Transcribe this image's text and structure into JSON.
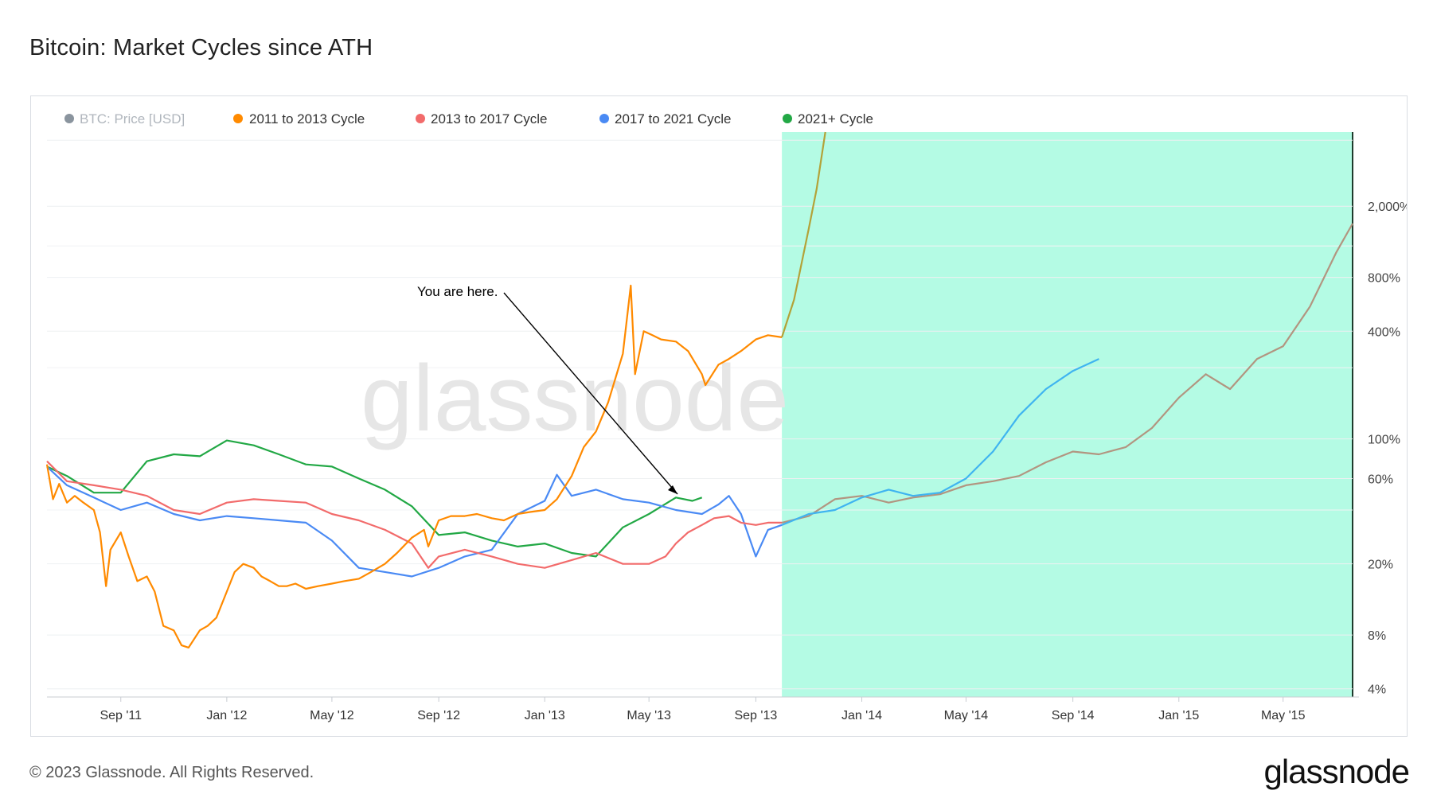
{
  "header": {
    "title": "Bitcoin: Market Cycles since ATH"
  },
  "footer": {
    "copyright": "© 2023 Glassnode. All Rights Reserved.",
    "logo": "glassnode"
  },
  "watermark": "glassnode",
  "annotation": {
    "text": "You are here."
  },
  "colors": {
    "btc_price": "#8a949e",
    "cycle_2011": "#ff8a00",
    "cycle_2013": "#f26b6b",
    "cycle_2017": "#4a8af4",
    "cycle_2021": "#22a845",
    "highlight": "#b4fbe4",
    "overlay_2011": "#b3a238",
    "overlay_2013": "#b29580",
    "overlay_2017": "#3fb4f0"
  },
  "chart_data": {
    "type": "line",
    "title": "Bitcoin: Market Cycles since ATH",
    "y_scale": "log",
    "y_unit": "%",
    "y_ticks": [
      "4%",
      "8%",
      "20%",
      "60%",
      "100%",
      "400%",
      "800%",
      "2,000%"
    ],
    "y_tick_values": [
      4,
      8,
      20,
      60,
      100,
      400,
      800,
      2000
    ],
    "x_ticks": [
      "Sep '11",
      "Jan '12",
      "May '12",
      "Sep '12",
      "Jan '13",
      "May '13",
      "Sep '13",
      "Jan '14",
      "May '14",
      "Sep '14",
      "Jan '15",
      "May '15"
    ],
    "x_range": [
      "2011-06-08",
      "2015-07-20"
    ],
    "highlight_range": [
      "2013-10-01",
      "2015-07-20"
    ],
    "legend_position": "top-left",
    "series": [
      {
        "name": "BTC: Price [USD]",
        "color_key": "btc_price",
        "disabled": true,
        "points": []
      },
      {
        "name": "2011 to 2013 Cycle",
        "color_key": "cycle_2011",
        "points": [
          [
            "2011-06-08",
            72
          ],
          [
            "2011-06-15",
            46
          ],
          [
            "2011-06-22",
            56
          ],
          [
            "2011-07-01",
            44
          ],
          [
            "2011-07-10",
            48
          ],
          [
            "2011-07-20",
            44
          ],
          [
            "2011-08-01",
            40
          ],
          [
            "2011-08-08",
            30
          ],
          [
            "2011-08-15",
            15
          ],
          [
            "2011-08-20",
            24
          ],
          [
            "2011-09-01",
            30
          ],
          [
            "2011-09-10",
            22
          ],
          [
            "2011-09-20",
            16
          ],
          [
            "2011-10-01",
            17
          ],
          [
            "2011-10-10",
            14
          ],
          [
            "2011-10-20",
            9
          ],
          [
            "2011-11-01",
            8.5
          ],
          [
            "2011-11-10",
            7
          ],
          [
            "2011-11-18",
            6.8
          ],
          [
            "2011-12-01",
            8.5
          ],
          [
            "2011-12-10",
            9
          ],
          [
            "2011-12-20",
            10
          ],
          [
            "2012-01-01",
            14
          ],
          [
            "2012-01-10",
            18
          ],
          [
            "2012-01-20",
            20
          ],
          [
            "2012-02-01",
            19
          ],
          [
            "2012-02-10",
            17
          ],
          [
            "2012-02-20",
            16
          ],
          [
            "2012-03-01",
            15
          ],
          [
            "2012-03-10",
            15
          ],
          [
            "2012-03-20",
            15.5
          ],
          [
            "2012-04-01",
            14.5
          ],
          [
            "2012-04-15",
            15
          ],
          [
            "2012-05-01",
            15.5
          ],
          [
            "2012-05-15",
            16
          ],
          [
            "2012-06-01",
            16.5
          ],
          [
            "2012-06-15",
            18
          ],
          [
            "2012-07-01",
            20
          ],
          [
            "2012-07-15",
            23
          ],
          [
            "2012-08-01",
            28
          ],
          [
            "2012-08-15",
            31
          ],
          [
            "2012-08-20",
            25
          ],
          [
            "2012-09-01",
            35
          ],
          [
            "2012-09-15",
            37
          ],
          [
            "2012-10-01",
            37
          ],
          [
            "2012-10-15",
            38
          ],
          [
            "2012-11-01",
            36
          ],
          [
            "2012-11-15",
            35
          ],
          [
            "2012-12-01",
            38
          ],
          [
            "2012-12-15",
            39
          ],
          [
            "2013-01-01",
            40
          ],
          [
            "2013-01-15",
            46
          ],
          [
            "2013-02-01",
            62
          ],
          [
            "2013-02-15,",
            90
          ],
          [
            "2013-03-01",
            110
          ],
          [
            "2013-03-15",
            160
          ],
          [
            "2013-04-01",
            300
          ],
          [
            "2013-04-10",
            720
          ],
          [
            "2013-04-15",
            230
          ],
          [
            "2013-04-25",
            400
          ],
          [
            "2013-05-05",
            380
          ],
          [
            "2013-05-15",
            360
          ],
          [
            "2013-06-01",
            350
          ],
          [
            "2013-06-15",
            310
          ],
          [
            "2013-07-01",
            230
          ],
          [
            "2013-07-05",
            200
          ],
          [
            "2013-07-20",
            260
          ],
          [
            "2013-08-01",
            280
          ],
          [
            "2013-08-15",
            310
          ],
          [
            "2013-09-01",
            360
          ],
          [
            "2013-09-15",
            380
          ],
          [
            "2013-10-01",
            370
          ]
        ]
      },
      {
        "name": "2013 to 2017 Cycle",
        "color_key": "cycle_2013",
        "points": [
          [
            "2011-06-08",
            75
          ],
          [
            "2011-07-01",
            58
          ],
          [
            "2011-08-01",
            55
          ],
          [
            "2011-09-01",
            52
          ],
          [
            "2011-10-01",
            48
          ],
          [
            "2011-11-01",
            40
          ],
          [
            "2011-12-01",
            38
          ],
          [
            "2012-01-01",
            44
          ],
          [
            "2012-02-01",
            46
          ],
          [
            "2012-03-01",
            45
          ],
          [
            "2012-04-01",
            44
          ],
          [
            "2012-05-01",
            38
          ],
          [
            "2012-06-01",
            35
          ],
          [
            "2012-07-01",
            31
          ],
          [
            "2012-08-01",
            26
          ],
          [
            "2012-08-20",
            19
          ],
          [
            "2012-09-01",
            22
          ],
          [
            "2012-10-01",
            24
          ],
          [
            "2012-11-01",
            22
          ],
          [
            "2012-12-01",
            20
          ],
          [
            "2013-01-01",
            19
          ],
          [
            "2013-02-01",
            21
          ],
          [
            "2013-03-01",
            23
          ],
          [
            "2013-04-01",
            20
          ],
          [
            "2013-05-01",
            20
          ],
          [
            "2013-05-20",
            22
          ],
          [
            "2013-06-01",
            26
          ],
          [
            "2013-06-15",
            30
          ],
          [
            "2013-07-01",
            33
          ],
          [
            "2013-07-15",
            36
          ],
          [
            "2013-08-01",
            37
          ],
          [
            "2013-08-15",
            34
          ],
          [
            "2013-09-01",
            33
          ],
          [
            "2013-09-15",
            34
          ],
          [
            "2013-10-01",
            34
          ]
        ]
      },
      {
        "name": "2017 to 2021 Cycle",
        "color_key": "cycle_2017",
        "points": [
          [
            "2011-06-08",
            70
          ],
          [
            "2011-07-01",
            55
          ],
          [
            "2011-08-01",
            47
          ],
          [
            "2011-09-01",
            40
          ],
          [
            "2011-10-01",
            44
          ],
          [
            "2011-11-01",
            38
          ],
          [
            "2011-12-01",
            35
          ],
          [
            "2012-01-01",
            37
          ],
          [
            "2012-02-01",
            36
          ],
          [
            "2012-03-01",
            35
          ],
          [
            "2012-04-01",
            34
          ],
          [
            "2012-05-01",
            27
          ],
          [
            "2012-06-01",
            19
          ],
          [
            "2012-07-01",
            18
          ],
          [
            "2012-08-01",
            17
          ],
          [
            "2012-09-01",
            19
          ],
          [
            "2012-10-01",
            22
          ],
          [
            "2012-11-01",
            24
          ],
          [
            "2012-12-01",
            38
          ],
          [
            "2013-01-01",
            45
          ],
          [
            "2013-01-15",
            63
          ],
          [
            "2013-02-01",
            48
          ],
          [
            "2013-03-01",
            52
          ],
          [
            "2013-04-01",
            46
          ],
          [
            "2013-05-01",
            44
          ],
          [
            "2013-06-01",
            40
          ],
          [
            "2013-07-01",
            38
          ],
          [
            "2013-07-20",
            43
          ],
          [
            "2013-08-01",
            48
          ],
          [
            "2013-08-15",
            38
          ],
          [
            "2013-09-01",
            22
          ],
          [
            "2013-09-15",
            31
          ],
          [
            "2013-10-01",
            33
          ]
        ]
      },
      {
        "name": "2021+ Cycle",
        "color_key": "cycle_2021",
        "points": [
          [
            "2011-06-08",
            70
          ],
          [
            "2011-07-01",
            62
          ],
          [
            "2011-08-01",
            50
          ],
          [
            "2011-09-01",
            50
          ],
          [
            "2011-10-01",
            75
          ],
          [
            "2011-11-01",
            82
          ],
          [
            "2011-12-01",
            80
          ],
          [
            "2012-01-01",
            98
          ],
          [
            "2012-02-01",
            92
          ],
          [
            "2012-03-01",
            82
          ],
          [
            "2012-04-01",
            72
          ],
          [
            "2012-05-01",
            70
          ],
          [
            "2012-06-01",
            60
          ],
          [
            "2012-07-01",
            52
          ],
          [
            "2012-08-01",
            42
          ],
          [
            "2012-09-01",
            29
          ],
          [
            "2012-10-01",
            30
          ],
          [
            "2012-11-01",
            27
          ],
          [
            "2012-12-01",
            25
          ],
          [
            "2013-01-01",
            26
          ],
          [
            "2013-02-01",
            23
          ],
          [
            "2013-03-01",
            22
          ],
          [
            "2013-04-01",
            32
          ],
          [
            "2013-05-01",
            38
          ],
          [
            "2013-06-01",
            47
          ],
          [
            "2013-06-20",
            45
          ],
          [
            "2013-07-01",
            47
          ]
        ]
      }
    ],
    "projections": [
      {
        "name": "2011 to 2013 Cycle",
        "color_key": "overlay_2011",
        "points": [
          [
            "2013-10-01",
            370
          ],
          [
            "2013-10-15",
            600
          ],
          [
            "2013-11-01",
            1500
          ],
          [
            "2013-11-10",
            2500
          ],
          [
            "2013-11-20",
            5200
          ]
        ]
      },
      {
        "name": "2013 to 2017 Cycle",
        "color_key": "overlay_2013",
        "points": [
          [
            "2013-10-01",
            34
          ],
          [
            "2013-11-01",
            37
          ],
          [
            "2013-12-01",
            46
          ],
          [
            "2014-01-01",
            48
          ],
          [
            "2014-02-01",
            44
          ],
          [
            "2014-03-01",
            47
          ],
          [
            "2014-04-01",
            49
          ],
          [
            "2014-05-01",
            55
          ],
          [
            "2014-06-01",
            58
          ],
          [
            "2014-07-01",
            62
          ],
          [
            "2014-08-01",
            74
          ],
          [
            "2014-09-01",
            85
          ],
          [
            "2014-10-01",
            82
          ],
          [
            "2014-11-01",
            90
          ],
          [
            "2014-12-01",
            115
          ],
          [
            "2015-01-01",
            170
          ],
          [
            "2015-02-01",
            230
          ],
          [
            "2015-03-01",
            190
          ],
          [
            "2015-04-01",
            280
          ],
          [
            "2015-05-01",
            330
          ],
          [
            "2015-06-01",
            550
          ],
          [
            "2015-07-01",
            1100
          ],
          [
            "2015-07-20",
            1600
          ]
        ]
      },
      {
        "name": "2017 to 2021 Cycle",
        "color_key": "overlay_2017",
        "points": [
          [
            "2013-10-01",
            33
          ],
          [
            "2013-11-01",
            38
          ],
          [
            "2013-12-01",
            40
          ],
          [
            "2014-01-01",
            47
          ],
          [
            "2014-02-01",
            52
          ],
          [
            "2014-03-01",
            48
          ],
          [
            "2014-04-01",
            50
          ],
          [
            "2014-05-01",
            60
          ],
          [
            "2014-06-01",
            85
          ],
          [
            "2014-07-01",
            135
          ],
          [
            "2014-08-01",
            190
          ],
          [
            "2014-09-01",
            240
          ],
          [
            "2014-10-01",
            280
          ]
        ]
      }
    ]
  }
}
